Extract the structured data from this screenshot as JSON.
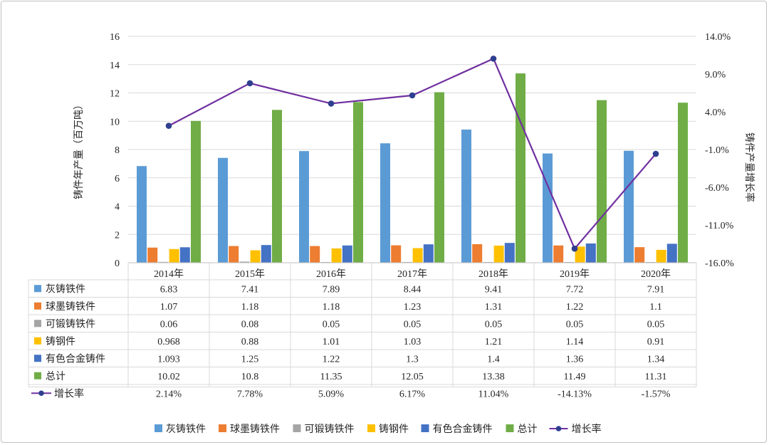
{
  "chart_data": {
    "type": "bar",
    "categories": [
      "2014年",
      "2015年",
      "2016年",
      "2017年",
      "2018年",
      "2019年",
      "2020年"
    ],
    "series": [
      {
        "name": "灰铸铁件",
        "color": "#5b9bd5",
        "values": [
          6.83,
          7.41,
          7.89,
          8.44,
          9.41,
          7.72,
          7.91
        ],
        "labels": [
          "6.83",
          "7.41",
          "7.89",
          "8.44",
          "9.41",
          "7.72",
          "7.91"
        ]
      },
      {
        "name": "球墨铸铁件",
        "color": "#ed7d31",
        "values": [
          1.07,
          1.18,
          1.18,
          1.23,
          1.31,
          1.22,
          1.1
        ],
        "labels": [
          "1.07",
          "1.18",
          "1.18",
          "1.23",
          "1.31",
          "1.22",
          "1.1"
        ]
      },
      {
        "name": "可锻铸铁件",
        "color": "#a5a5a5",
        "values": [
          0.06,
          0.08,
          0.05,
          0.05,
          0.05,
          0.05,
          0.05
        ],
        "labels": [
          "0.06",
          "0.08",
          "0.05",
          "0.05",
          "0.05",
          "0.05",
          "0.05"
        ]
      },
      {
        "name": "铸钢件",
        "color": "#ffc000",
        "values": [
          0.968,
          0.88,
          1.01,
          1.03,
          1.21,
          1.14,
          0.91
        ],
        "labels": [
          "0.968",
          "0.88",
          "1.01",
          "1.03",
          "1.21",
          "1.14",
          "0.91"
        ]
      },
      {
        "name": "有色合金铸件",
        "color": "#4472c4",
        "values": [
          1.093,
          1.25,
          1.22,
          1.3,
          1.4,
          1.36,
          1.34
        ],
        "labels": [
          "1.093",
          "1.25",
          "1.22",
          "1.3",
          "1.4",
          "1.36",
          "1.34"
        ]
      },
      {
        "name": "总计",
        "color": "#70ad47",
        "values": [
          10.02,
          10.8,
          11.35,
          12.05,
          13.38,
          11.49,
          11.31
        ],
        "labels": [
          "10.02",
          "10.8",
          "11.35",
          "12.05",
          "13.38",
          "11.49",
          "11.31"
        ]
      }
    ],
    "line_series": {
      "name": "增长率",
      "color": "#7030a0",
      "values": [
        2.14,
        7.78,
        5.09,
        6.17,
        11.04,
        -14.13,
        -1.57
      ],
      "labels": [
        "2.14%",
        "7.78%",
        "5.09%",
        "6.17%",
        "11.04%",
        "-14.13%",
        "-1.57%"
      ]
    },
    "ylabel": "铸件年产量（百万吨）",
    "y2label": "铸件产量增长率",
    "ylim": [
      0,
      16
    ],
    "y_ticks": [
      "0",
      "2",
      "4",
      "6",
      "8",
      "10",
      "12",
      "14",
      "16"
    ],
    "y2lim": [
      -16,
      14
    ],
    "y2_ticks": [
      "-16.0%",
      "-11.0%",
      "-6.0%",
      "-1.0%",
      "4.0%",
      "9.0%",
      "14.0%"
    ],
    "grid": true,
    "legend": "bottom",
    "data_table": true
  }
}
